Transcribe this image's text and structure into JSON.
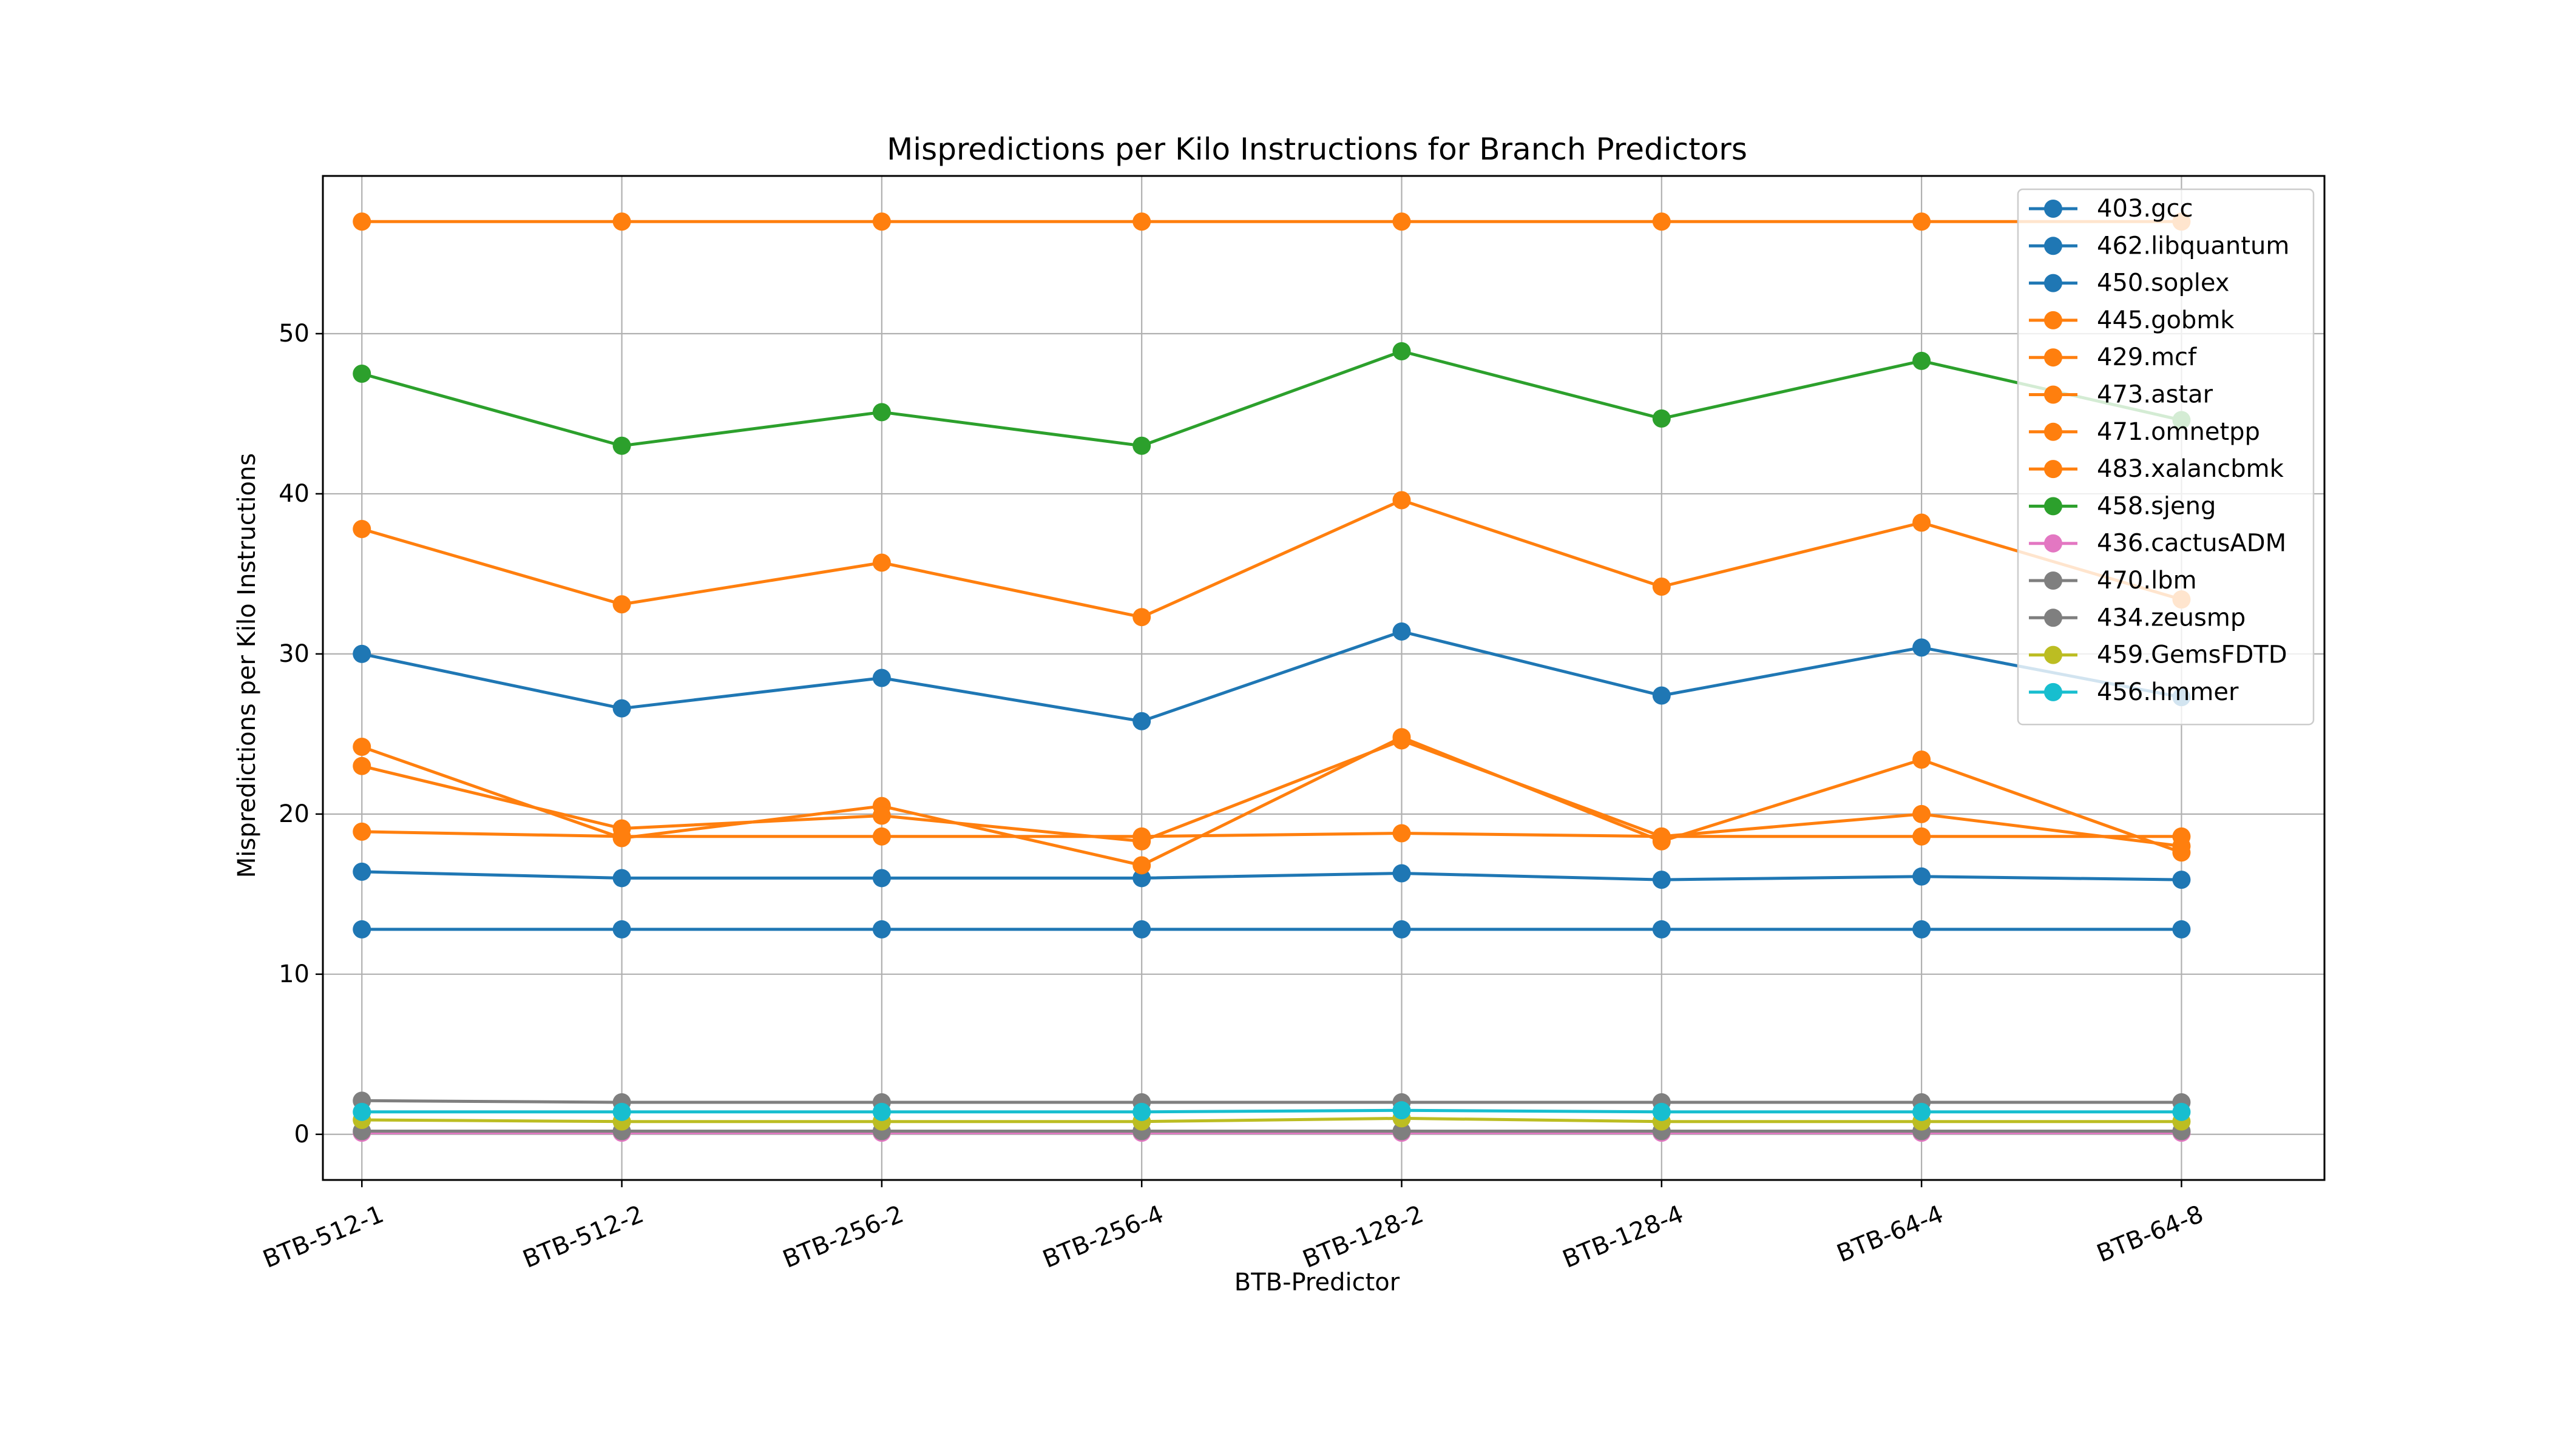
{
  "chart_data": {
    "type": "line",
    "title": "Mispredictions per Kilo Instructions for Branch Predictors",
    "xlabel": "BTB-Predictor",
    "ylabel": "Mispredictions per Kilo Instructions",
    "categories": [
      "BTB-512-1",
      "BTB-512-2",
      "BTB-256-2",
      "BTB-256-4",
      "BTB-128-2",
      "BTB-128-4",
      "BTB-64-4",
      "BTB-64-8"
    ],
    "ylim": [
      -2.85,
      59.85
    ],
    "yticks": [
      0,
      10,
      20,
      30,
      40,
      50
    ],
    "grid": true,
    "legend_position": "top-right",
    "series": [
      {
        "name": "403.gcc",
        "color": "#1f77b4",
        "values": [
          30.0,
          26.6,
          28.5,
          25.8,
          31.4,
          27.4,
          30.4,
          27.3
        ]
      },
      {
        "name": "462.libquantum",
        "color": "#1f77b4",
        "values": [
          12.8,
          12.8,
          12.8,
          12.8,
          12.8,
          12.8,
          12.8,
          12.8
        ]
      },
      {
        "name": "450.soplex",
        "color": "#1f77b4",
        "values": [
          16.4,
          16.0,
          16.0,
          16.0,
          16.3,
          15.9,
          16.1,
          15.9
        ]
      },
      {
        "name": "445.gobmk",
        "color": "#ff7f0e",
        "values": [
          57.0,
          57.0,
          57.0,
          57.0,
          57.0,
          57.0,
          57.0,
          57.0
        ]
      },
      {
        "name": "429.mcf",
        "color": "#ff7f0e",
        "values": [
          37.8,
          33.1,
          35.7,
          32.3,
          39.6,
          34.2,
          38.2,
          33.4
        ]
      },
      {
        "name": "473.astar",
        "color": "#ff7f0e",
        "values": [
          24.2,
          18.5,
          20.5,
          16.8,
          24.8,
          18.3,
          23.4,
          17.6
        ]
      },
      {
        "name": "471.omnetpp",
        "color": "#ff7f0e",
        "values": [
          23.0,
          19.1,
          19.9,
          18.3,
          24.6,
          18.6,
          20.0,
          18.0
        ]
      },
      {
        "name": "483.xalancbmk",
        "color": "#ff7f0e",
        "values": [
          18.9,
          18.6,
          18.6,
          18.6,
          18.8,
          18.6,
          18.6,
          18.6
        ]
      },
      {
        "name": "458.sjeng",
        "color": "#2ca02c",
        "values": [
          47.5,
          43.0,
          45.1,
          43.0,
          48.9,
          44.7,
          48.3,
          44.6
        ]
      },
      {
        "name": "436.cactusADM",
        "color": "#e377c2",
        "values": [
          0.1,
          0.1,
          0.1,
          0.1,
          0.1,
          0.1,
          0.1,
          0.1
        ]
      },
      {
        "name": "470.lbm",
        "color": "#7f7f7f",
        "values": [
          2.1,
          2.0,
          2.0,
          2.0,
          2.0,
          2.0,
          2.0,
          2.0
        ]
      },
      {
        "name": "434.zeusmp",
        "color": "#7f7f7f",
        "values": [
          0.2,
          0.2,
          0.2,
          0.2,
          0.2,
          0.2,
          0.2,
          0.2
        ]
      },
      {
        "name": "459.GemsFDTD",
        "color": "#bcbd22",
        "values": [
          0.9,
          0.8,
          0.8,
          0.8,
          1.0,
          0.8,
          0.8,
          0.8
        ]
      },
      {
        "name": "456.hmmer",
        "color": "#17becf",
        "values": [
          1.4,
          1.4,
          1.4,
          1.4,
          1.5,
          1.4,
          1.4,
          1.4
        ]
      }
    ]
  }
}
